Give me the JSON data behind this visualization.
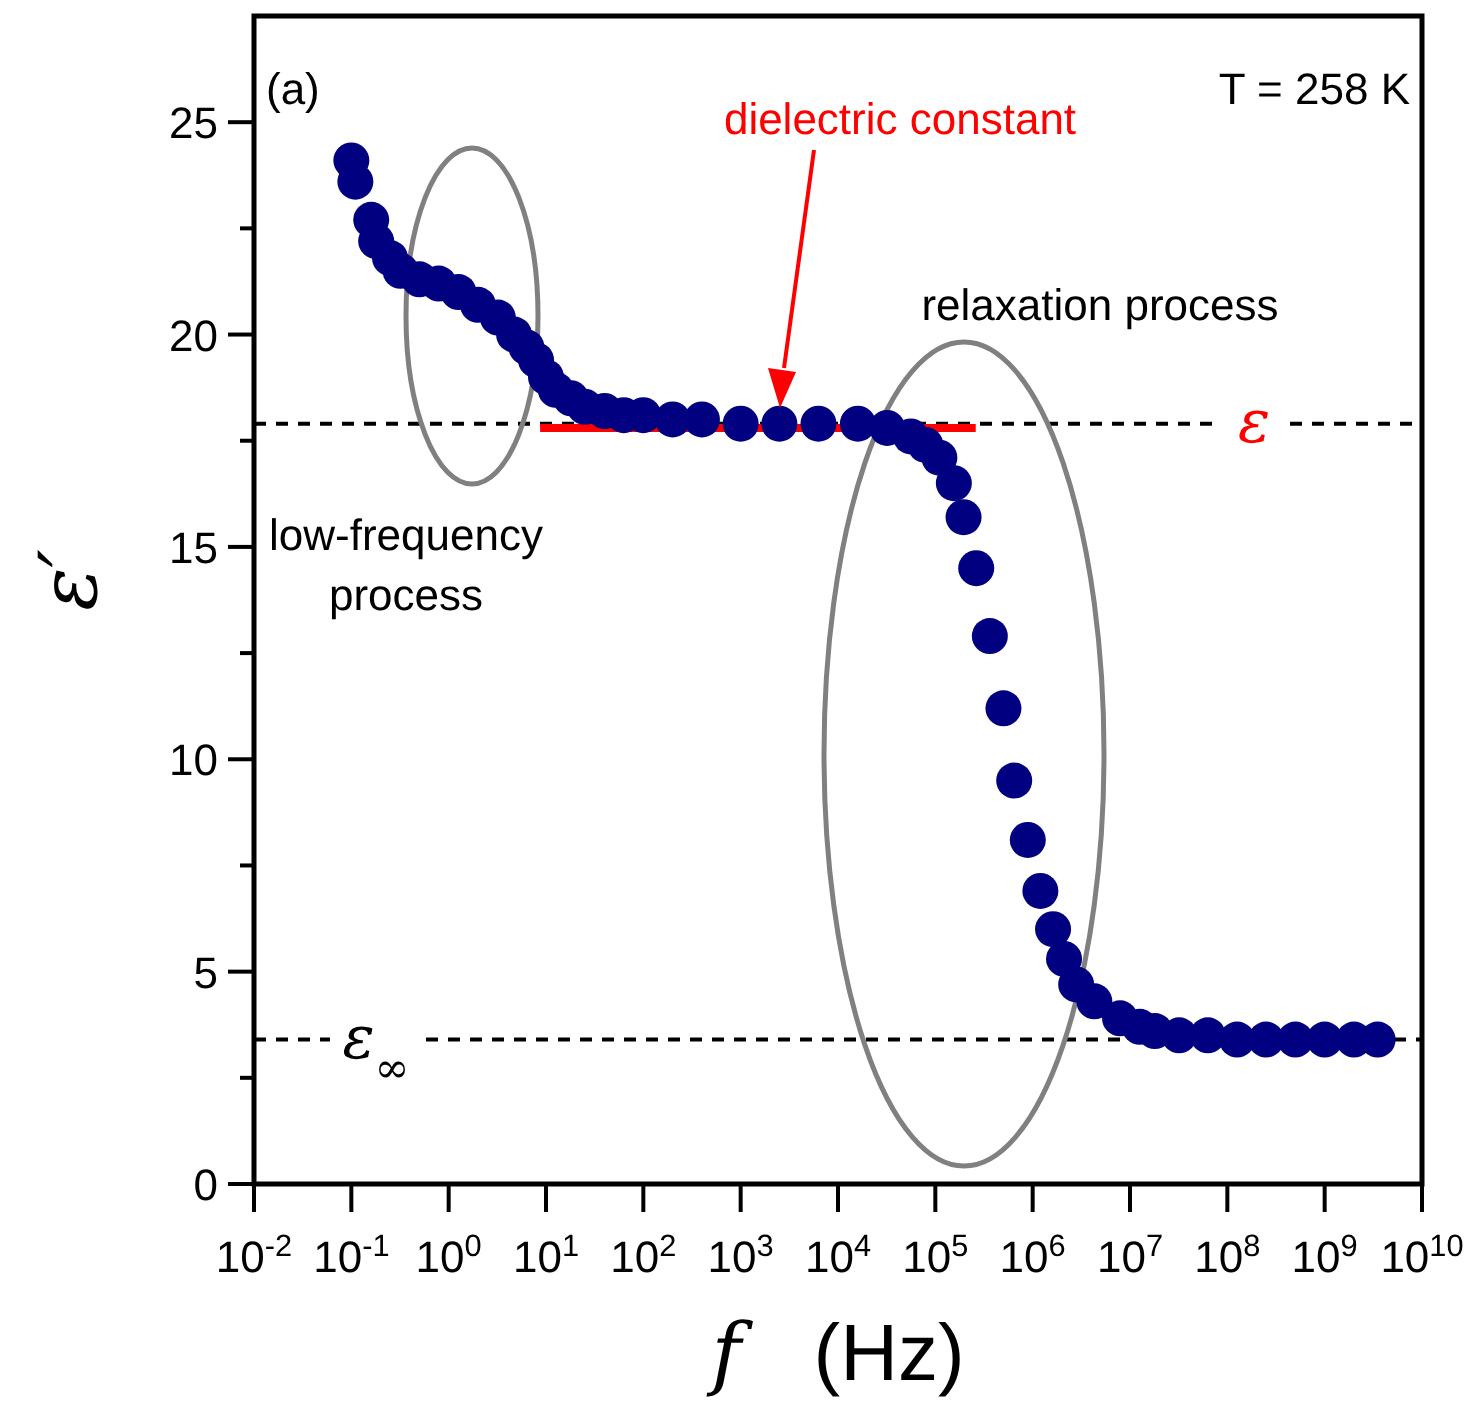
{
  "chart_data": {
    "type": "scatter",
    "xlabel": "f (Hz)",
    "ylabel": "ε′",
    "log": "x",
    "grid": false,
    "xlim": [
      0.01,
      10000000000
    ],
    "xticks": [
      {
        "value": 0.01,
        "label": "10$^{-2}$"
      },
      {
        "value": 0.1,
        "label": "10$^{-1}$"
      },
      {
        "value": 1,
        "label": "10$^{0}$"
      },
      {
        "value": 10,
        "label": "10$^{1}$"
      },
      {
        "value": 100,
        "label": "10$^{2}$"
      },
      {
        "value": 1000,
        "label": "10$^{3}$"
      },
      {
        "value": 10000,
        "label": "10$^{4}$"
      },
      {
        "value": 100000,
        "label": "10$^{5}$"
      },
      {
        "value": 1000000,
        "label": "10$^{6}$"
      },
      {
        "value": 10000000,
        "label": "10$^{7}$"
      },
      {
        "value": 100000000,
        "label": "10$^{8}$"
      },
      {
        "value": 1000000000,
        "label": "10$^{9}$"
      },
      {
        "value": 10000000000,
        "label": "10$^{10}$"
      }
    ],
    "ylim": [
      0,
      27.5
    ],
    "yticks": [
      0,
      {
        "value": 2.5,
        "label": null
      },
      5,
      {
        "value": 7.5,
        "label": null
      },
      10,
      {
        "value": 12.5,
        "label": null
      },
      15,
      {
        "value": 17.5,
        "label": null
      },
      20,
      {
        "value": 22.5,
        "label": null
      },
      25
    ],
    "series": [
      {
        "marker": "circle",
        "color": "#000080",
        "x": [
          0.1,
          0.11,
          0.16,
          0.18,
          0.25,
          0.32,
          0.5,
          0.79,
          1.26,
          2,
          3.2,
          4.7,
          6.3,
          7.9,
          10,
          12.6,
          18,
          25,
          40,
          63,
          100,
          200,
          400,
          1000,
          2500,
          6300,
          16000,
          32000,
          56000,
          79000,
          110000,
          155000,
          195000,
          263000,
          363000,
          501000,
          646000,
          891000,
          1200000,
          1620000,
          2100000,
          2800000,
          4300000,
          7900000,
          12600000,
          18000000,
          32000000,
          63000000,
          126000000,
          250000000,
          500000000,
          1000000000,
          2000000000,
          3500000000
        ],
        "values": [
          24.1,
          23.6,
          22.7,
          22.2,
          21.8,
          21.5,
          21.3,
          21.2,
          21.0,
          20.7,
          20.4,
          20.0,
          19.7,
          19.4,
          19.0,
          18.7,
          18.5,
          18.3,
          18.2,
          18.1,
          18.1,
          18.0,
          18.0,
          17.9,
          17.9,
          17.9,
          17.9,
          17.8,
          17.6,
          17.4,
          17.1,
          16.5,
          15.7,
          14.5,
          12.9,
          11.2,
          9.5,
          8.1,
          6.9,
          6.0,
          5.3,
          4.7,
          4.3,
          3.9,
          3.7,
          3.6,
          3.5,
          3.5,
          3.4,
          3.4,
          3.4,
          3.4,
          3.4,
          3.4
        ]
      },
      {
        "type": "line",
        "color": "#ff0000",
        "x": [
          8.7,
          260000
        ],
        "values": [
          17.8,
          17.8
        ]
      }
    ],
    "ref_lines": [
      {
        "axis": "y",
        "value": 17.9,
        "label": "ε",
        "color": "#000000",
        "line_style": "dashed"
      },
      {
        "axis": "y",
        "value": 3.4,
        "label": "ε$_{∞}$",
        "color": "#000000",
        "line_style": "dashed"
      }
    ],
    "annotations": [
      "(a)",
      "T = 258 K",
      "dielectric constant",
      "low-frequency process",
      "relaxation process"
    ]
  }
}
